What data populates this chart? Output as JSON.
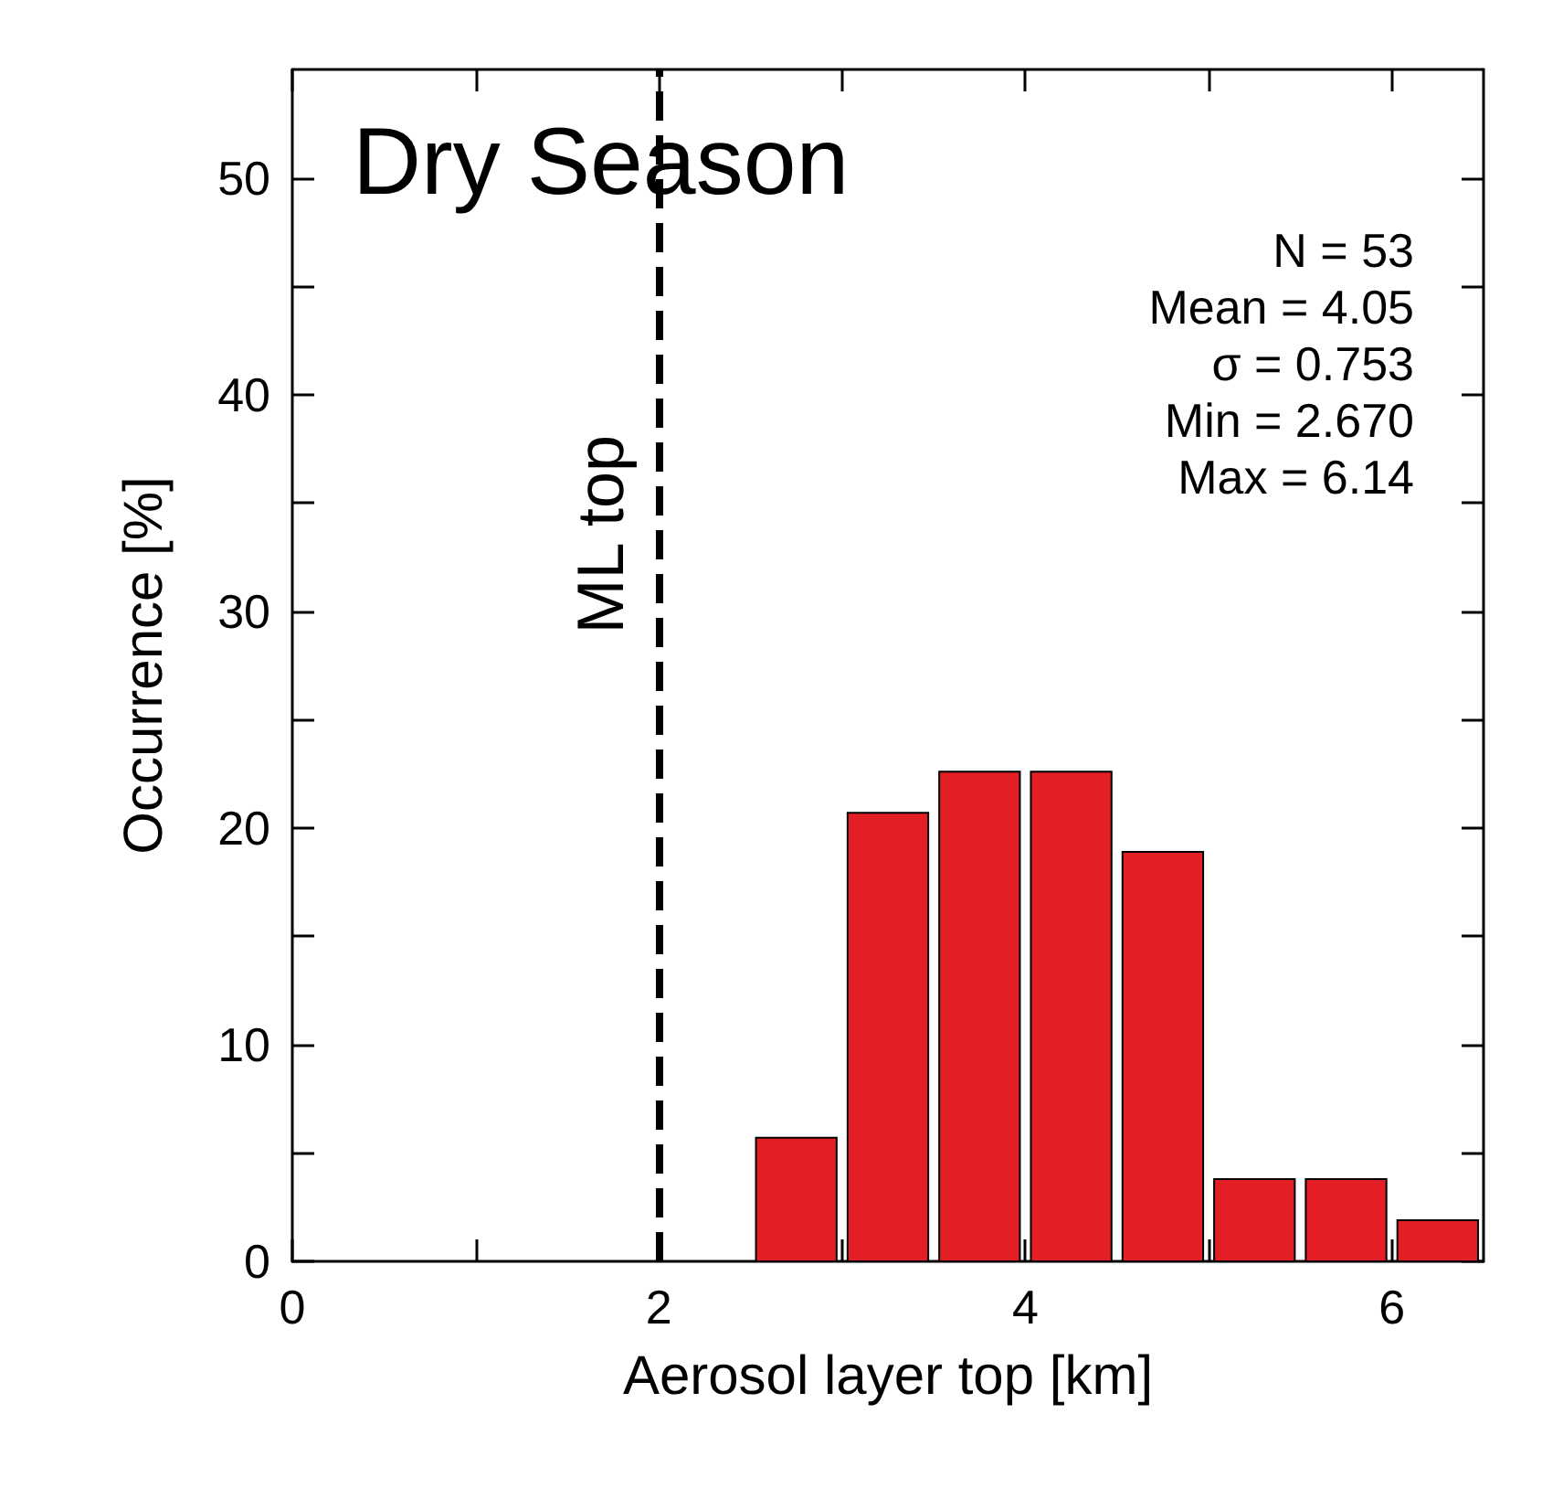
{
  "chart_data": {
    "type": "histogram",
    "title": "Dry Season",
    "xlabel": "Aerosol layer top [km]",
    "ylabel": "Occurrence [%]",
    "bins": [
      0.5,
      1,
      1.5,
      2,
      2.5,
      3,
      3.5,
      4,
      4.5,
      5,
      5.5,
      6,
      6.5
    ],
    "values": [
      0,
      0,
      0,
      0,
      5.7,
      20.7,
      22.6,
      22.6,
      18.9,
      3.8,
      3.8,
      1.9
    ],
    "color": "#e31e24",
    "xlim": [
      0,
      6.5
    ],
    "xticks": [
      0,
      {
        "value": 1,
        "label": null
      },
      2,
      {
        "value": 3,
        "label": null
      },
      4,
      {
        "value": 5,
        "label": null
      },
      6
    ],
    "ylim": [
      0,
      55
    ],
    "yticks": [
      0,
      {
        "value": 5,
        "label": null
      },
      10,
      {
        "value": 15,
        "label": null
      },
      20,
      {
        "value": 25,
        "label": null
      },
      30,
      {
        "value": 35,
        "label": null
      },
      40,
      {
        "value": 45,
        "label": null
      },
      50
    ],
    "ref_lines": [
      {
        "axis": "x",
        "value": 2,
        "label": "ML top",
        "line_style": "dashed",
        "color": "#000000"
      }
    ],
    "annotations": [
      "N = 53",
      "Mean = 4.05",
      "σ = 0.753",
      "Min = 2.670",
      "Max = 6.14"
    ]
  }
}
